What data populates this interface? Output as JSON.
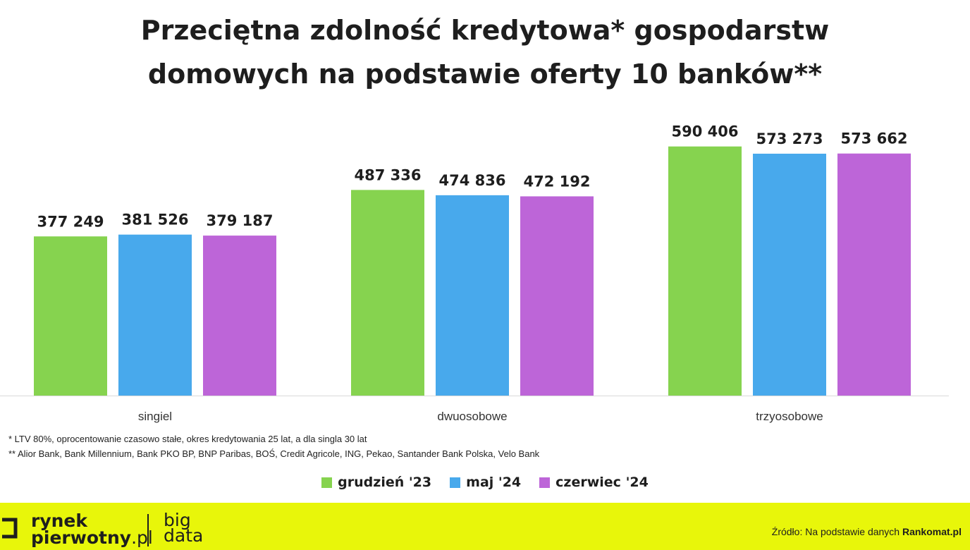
{
  "title_line1": "Przeciętna zdolność kredytowa* gospodarstw",
  "title_line2": "domowych na podstawie oferty 10 banków**",
  "chart_data": {
    "type": "bar",
    "categories": [
      "singiel",
      "dwuosobowe",
      "trzyosobowe"
    ],
    "series": [
      {
        "name": "grudzień '23",
        "color": "#86d34f",
        "values": [
          377249,
          487336,
          590406
        ],
        "labels": [
          "377 249",
          "487 336",
          "590 406"
        ]
      },
      {
        "name": "maj '24",
        "color": "#48a9ec",
        "values": [
          381526,
          474836,
          573273
        ],
        "labels": [
          "381 526",
          "474 836",
          "573 273"
        ]
      },
      {
        "name": "czerwiec '24",
        "color": "#bd65d8",
        "values": [
          379187,
          472192,
          573662
        ],
        "labels": [
          "379 187",
          "472 192",
          "573 662"
        ]
      }
    ],
    "ylim": [
      0,
      620000
    ],
    "grid": false,
    "legend": "bottom-center"
  },
  "footnotes": {
    "note1": "* LTV 80%, oprocentowanie czasowo stałe, okres kredytowania 25 lat, a dla singla 30 lat",
    "note2": "** Alior Bank, Bank Millennium, Bank PKO BP, BNP Paribas, BOŚ,  Credit Agricole, ING, Pekao, Santander Bank Polska, Velo Bank"
  },
  "footer": {
    "logo_line1": "rynek",
    "logo_line2_bold": "pierwotny",
    "logo_line2_suffix": ".pl",
    "logo_big": "big",
    "logo_data": "data",
    "source_prefix": "Źródło: Na podstawie danych ",
    "source_brand": "Rankomat.pl",
    "background_color": "#e8f60a"
  }
}
